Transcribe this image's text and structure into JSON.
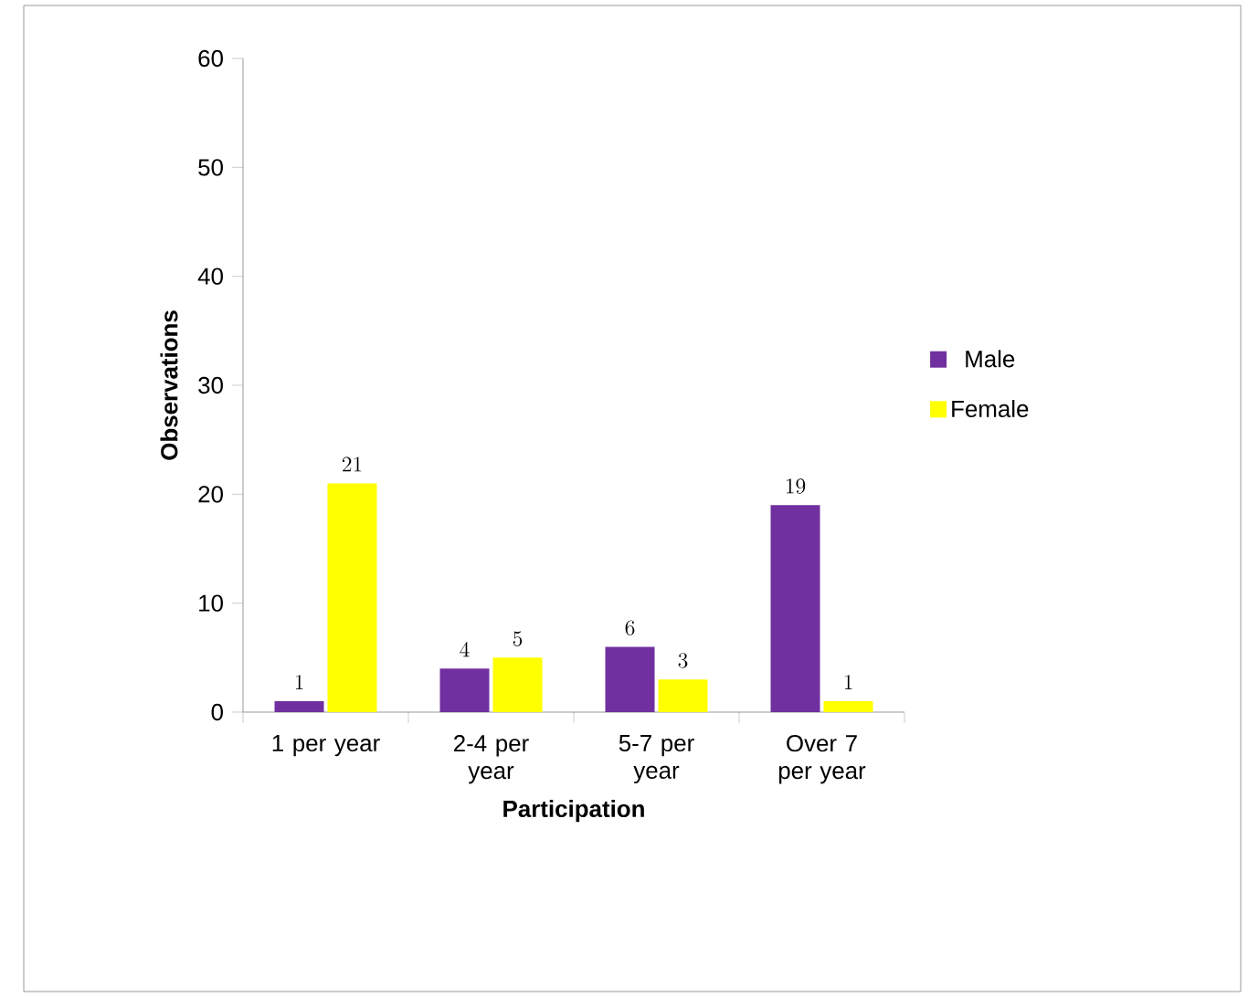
{
  "chart_data": {
    "type": "bar",
    "xlabel": "Participation",
    "ylabel": "Observations",
    "categories": [
      "1 per year",
      "2-4 per year",
      "5-7 per year",
      "Over 7 per year"
    ],
    "series": [
      {
        "name": "Male",
        "color": "#7030a0",
        "values": [
          1,
          4,
          6,
          19
        ]
      },
      {
        "name": "Female",
        "color": "#ffff00",
        "values": [
          21,
          5,
          3,
          1
        ]
      }
    ],
    "ylim": [
      0,
      60
    ],
    "yticks": [
      0,
      10,
      20,
      30,
      40,
      50,
      60
    ],
    "data_labels": true,
    "legend": "right",
    "grid": false
  }
}
